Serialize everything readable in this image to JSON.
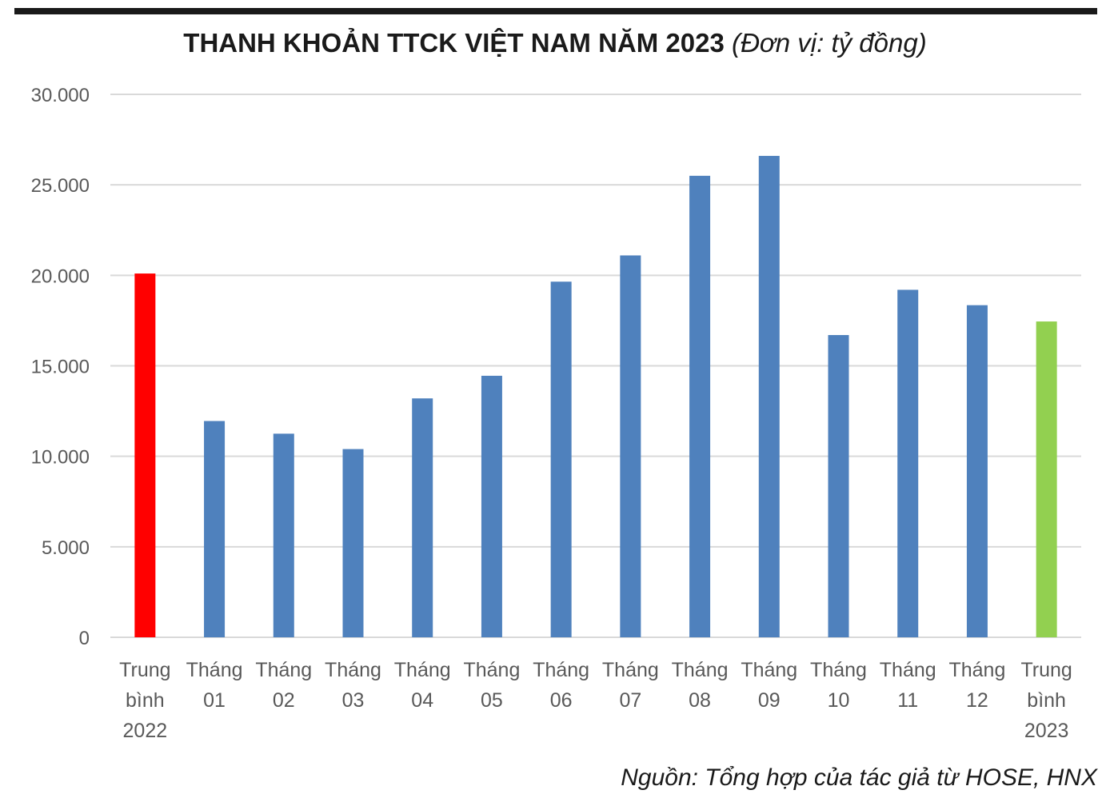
{
  "title": "THANH KHOẢN TTCK VIỆT NAM NĂM 2023",
  "title_unit": "(Đơn vị: tỷ đồng)",
  "source": "Nguồn: Tổng hợp của tác giả từ HOSE, HNX",
  "chart_data": {
    "type": "bar",
    "title": "THANH KHOẢN TTCK VIỆT NAM NĂM 2023 (Đơn vị: tỷ đồng)",
    "categories": [
      "Trung bình 2022",
      "Tháng 01",
      "Tháng 02",
      "Tháng 03",
      "Tháng 04",
      "Tháng 05",
      "Tháng 06",
      "Tháng 07",
      "Tháng 08",
      "Tháng 09",
      "Tháng 10",
      "Tháng 11",
      "Tháng 12",
      "Trung bình 2023"
    ],
    "category_lines": [
      [
        "Trung",
        "bình",
        "2022"
      ],
      [
        "Tháng",
        "01"
      ],
      [
        "Tháng",
        "02"
      ],
      [
        "Tháng",
        "03"
      ],
      [
        "Tháng",
        "04"
      ],
      [
        "Tháng",
        "05"
      ],
      [
        "Tháng",
        "06"
      ],
      [
        "Tháng",
        "07"
      ],
      [
        "Tháng",
        "08"
      ],
      [
        "Tháng",
        "09"
      ],
      [
        "Tháng",
        "10"
      ],
      [
        "Tháng",
        "11"
      ],
      [
        "Tháng",
        "12"
      ],
      [
        "Trung",
        "bình",
        "2023"
      ]
    ],
    "values": [
      20100,
      11950,
      11250,
      10400,
      13200,
      14450,
      19650,
      21100,
      25500,
      26600,
      16700,
      19200,
      18350,
      17450
    ],
    "bar_colors": [
      "#ff0000",
      "#4f81bd",
      "#4f81bd",
      "#4f81bd",
      "#4f81bd",
      "#4f81bd",
      "#4f81bd",
      "#4f81bd",
      "#4f81bd",
      "#4f81bd",
      "#4f81bd",
      "#4f81bd",
      "#4f81bd",
      "#92d050"
    ],
    "ylim": [
      0,
      30000
    ],
    "yticks": [
      0,
      5000,
      10000,
      15000,
      20000,
      25000,
      30000
    ],
    "ytick_labels": [
      "0",
      "5.000",
      "10.000",
      "15.000",
      "20.000",
      "25.000",
      "30.000"
    ],
    "xlabel": "",
    "ylabel": "",
    "grid": true,
    "legend": "none",
    "colors": {
      "grid": "#d9d9d9",
      "axis_text": "#595959"
    }
  }
}
